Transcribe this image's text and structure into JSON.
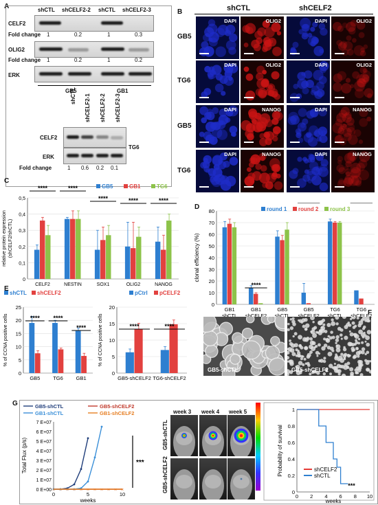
{
  "panelA": {
    "label": "A",
    "cols": [
      "shCTL",
      "shCELF2-2",
      "shCTL",
      "shCELF2-3"
    ],
    "rows": [
      {
        "name": "CELF2",
        "fc_label": "Fold change",
        "fc": [
          "1",
          "0.2",
          "1",
          "0.3"
        ]
      },
      {
        "name": "OLIG2",
        "fc_label": "Fold change",
        "fc": [
          "1",
          "0.2",
          "1",
          "0.2"
        ]
      },
      {
        "name": "ERK"
      }
    ],
    "groups": [
      "GB5",
      "GB1"
    ],
    "tg6": {
      "cols": [
        "shCTL",
        "shCELF2-1",
        "shCELF2-2",
        "shCELF2-3"
      ],
      "rows": [
        "CELF2",
        "ERK"
      ],
      "group": "TG6",
      "fc_label": "Fold change",
      "fc": [
        "1",
        "0.6",
        "0.2",
        "0.1"
      ]
    }
  },
  "panelB": {
    "label": "B",
    "groups": [
      "shCTL",
      "shCELF2"
    ],
    "rows": [
      {
        "name": "GB5",
        "stain": "OLIG2",
        "dapi": "DAPI"
      },
      {
        "name": "TG6",
        "stain": "OLIG2",
        "dapi": "DAPI"
      },
      {
        "name": "GB5",
        "stain": "NANOG",
        "dapi": "DAPI"
      },
      {
        "name": "TG6",
        "stain": "NANOG",
        "dapi": "DAPI"
      }
    ],
    "colors": {
      "dapi": "#1e2cc8",
      "stain": "#c81414"
    }
  },
  "chart_data": [
    {
      "id": "C",
      "type": "bar",
      "ylabel": "relative protein expression (shCELF2/shCTL)",
      "categories": [
        "CELF2",
        "NESTIN",
        "SOX1",
        "OLIG2",
        "NANOG"
      ],
      "ylim": [
        0,
        0.5
      ],
      "yticks": [
        "0",
        "0,1",
        "0,2",
        "0,3",
        "0,4",
        "0,5"
      ],
      "series": [
        {
          "name": "GB5",
          "color": "#2e7fd0",
          "values": [
            0.18,
            0.37,
            0.18,
            0.2,
            0.23
          ],
          "err": [
            0.03,
            0.01,
            0.12,
            0.15,
            0.09
          ]
        },
        {
          "name": "GB1",
          "color": "#e2413f",
          "values": [
            0.36,
            0.37,
            0.24,
            0.19,
            0.18
          ],
          "err": [
            0.02,
            0.05,
            0.08,
            0.16,
            0.09
          ]
        },
        {
          "name": "TG6",
          "color": "#8dc34a",
          "values": [
            0.27,
            0.37,
            0.27,
            0.26,
            0.36
          ],
          "err": [
            0.06,
            0.05,
            0.06,
            0.06,
            0.04
          ]
        }
      ],
      "sig": "****"
    },
    {
      "id": "D",
      "type": "bar",
      "ylabel": "clonal efficiency (%)",
      "categories": [
        "GB1\nshCTL",
        "GB1\nshCELF2",
        "GB5\nshCTL",
        "GB5\nshCELF2",
        "TG6\nshCTL",
        "TG6\nshCELF2"
      ],
      "ylim": [
        0,
        80
      ],
      "yticks": [
        "0",
        "10",
        "20",
        "30",
        "40",
        "50",
        "60",
        "70",
        "80"
      ],
      "series": [
        {
          "name": "round 1",
          "color": "#2e7fd0",
          "values": [
            66,
            14,
            58,
            10,
            71,
            12
          ],
          "err": [
            5,
            2,
            5,
            8,
            2,
            0
          ]
        },
        {
          "name": "round 2",
          "color": "#e2413f",
          "values": [
            69,
            9,
            55,
            1,
            70,
            5
          ],
          "err": [
            4,
            1,
            4,
            0,
            1,
            0
          ]
        },
        {
          "name": "round 3",
          "color": "#8dc34a",
          "values": [
            66,
            1,
            64,
            0,
            70,
            0
          ],
          "err": [
            4,
            0,
            6,
            0,
            1,
            0
          ]
        }
      ],
      "sig": "****"
    },
    {
      "id": "E1",
      "type": "bar",
      "ylabel": "% of CCNA positive cells",
      "categories": [
        "GB5",
        "TG6",
        "GB1"
      ],
      "ylim": [
        0,
        25
      ],
      "yticks": [
        "0",
        "5",
        "10",
        "15",
        "20",
        "25"
      ],
      "series": [
        {
          "name": "shCTL",
          "color": "#2e7fd0",
          "values": [
            19,
            19,
            16
          ],
          "err": [
            2.5,
            1,
            1
          ]
        },
        {
          "name": "shCELF2",
          "color": "#e2413f",
          "values": [
            7.5,
            9,
            6.5
          ],
          "err": [
            1,
            0.5,
            1
          ]
        }
      ],
      "sig": "****"
    },
    {
      "id": "E2",
      "type": "bar",
      "ylabel": "% of CCNA positive cells",
      "categories": [
        "GB5-shCELF2",
        "TG6-shCELF2"
      ],
      "ylim": [
        0,
        20
      ],
      "yticks": [
        "0",
        "5",
        "10",
        "15",
        "20"
      ],
      "series": [
        {
          "name": "pCtrl",
          "color": "#2e7fd0",
          "values": [
            6.3,
            7
          ],
          "err": [
            1,
            1
          ]
        },
        {
          "name": "pCELF2",
          "color": "#e2413f",
          "values": [
            13.3,
            14.8
          ],
          "err": [
            1.8,
            1.3
          ]
        }
      ],
      "sig": "****"
    },
    {
      "id": "G1",
      "type": "line",
      "ylabel": "Total Flux (p/s)",
      "xlabel": "weeks",
      "xlim": [
        0,
        10
      ],
      "ylim": [
        0,
        70000000.0
      ],
      "xticks": [
        "0",
        "5",
        "10"
      ],
      "yticks": [
        "0 E+00",
        "1 E+07",
        "2 E+07",
        "3 E+07",
        "4 E+07",
        "5 E+07",
        "6 E+07",
        "7 E+07"
      ],
      "series": [
        {
          "name": "GB5-shCTL",
          "color": "#1f3d7a",
          "x": [
            0,
            1,
            2,
            3,
            4,
            5
          ],
          "y": [
            0,
            0,
            1000000.0,
            5000000.0,
            21000000.0,
            53000000.0
          ]
        },
        {
          "name": "GB5-shCELF2",
          "color": "#c0392b",
          "x": [
            0,
            1,
            2,
            3,
            4,
            5,
            6,
            7,
            8,
            9,
            10
          ],
          "y": [
            0,
            0,
            0,
            0,
            0,
            0,
            0,
            0,
            0,
            0,
            0
          ]
        },
        {
          "name": "GB1-shCTL",
          "color": "#3a8fd8",
          "x": [
            0,
            1,
            2,
            3,
            4,
            5,
            6,
            7
          ],
          "y": [
            0,
            0,
            0,
            0,
            1000000.0,
            8000000.0,
            33000000.0,
            65000000.0
          ]
        },
        {
          "name": "GB1-shCELF2",
          "color": "#e67e22",
          "x": [
            0,
            1,
            2,
            3,
            4,
            5,
            6,
            7,
            8,
            9,
            10
          ],
          "y": [
            0,
            0,
            0,
            0,
            0,
            0,
            0,
            0,
            0,
            0,
            0
          ]
        }
      ],
      "sig": "***"
    },
    {
      "id": "G2",
      "type": "line",
      "ylabel": "Probability of survival",
      "xlabel": "weeks",
      "xlim": [
        0,
        10
      ],
      "ylim": [
        0,
        1
      ],
      "xticks": [
        "0",
        "2",
        "4",
        "6",
        "8",
        "10"
      ],
      "yticks": [
        "0",
        "0.2",
        "0.4",
        "0.6",
        "0.8",
        "1"
      ],
      "series": [
        {
          "name": "shCELF2",
          "color": "#e53935",
          "x": [
            0,
            10
          ],
          "y": [
            1,
            1
          ]
        },
        {
          "name": "shCTL",
          "color": "#2e7fd0",
          "x": [
            0,
            3,
            3,
            4,
            4,
            5,
            5,
            5.5,
            5.5,
            6,
            6,
            7
          ],
          "y": [
            1,
            1,
            0.8,
            0.8,
            0.6,
            0.6,
            0.4,
            0.4,
            0.3,
            0.3,
            0.1,
            0.1
          ]
        }
      ],
      "sig": "***"
    }
  ],
  "panelF": {
    "label": "F",
    "left": "GB5-shCTL",
    "right": "GB5-shCELF2"
  },
  "panelG": {
    "label": "G",
    "weeks": [
      "week 3",
      "week 4",
      "week 5"
    ],
    "rows": [
      "GB5-shCTL",
      "GB5-shCELF2"
    ]
  },
  "labels": {
    "C": "C",
    "D": "D",
    "E": "E"
  }
}
